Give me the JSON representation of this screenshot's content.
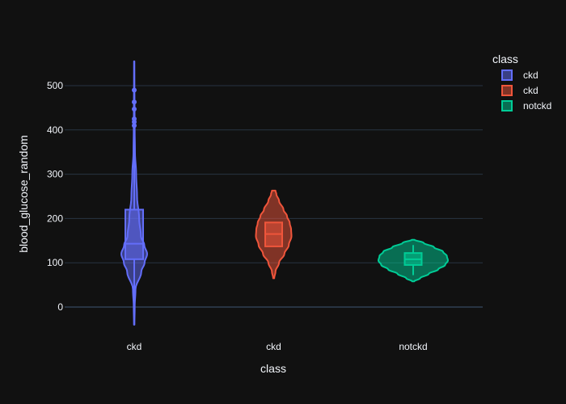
{
  "chart_data": {
    "type": "violin",
    "xlabel": "class",
    "ylabel": "blood_glucose_random",
    "categories": [
      "ckd",
      "ckd",
      "notckd"
    ],
    "ylim": [
      -40,
      555
    ],
    "y_ticks": [
      0,
      100,
      200,
      300,
      400,
      500
    ],
    "grid": true,
    "legend": {
      "title": "class",
      "placement": "top-right",
      "items": [
        "ckd",
        "ckd",
        "notckd"
      ]
    },
    "series": [
      {
        "name": "ckd",
        "category_index": 0,
        "color": "#636efa",
        "box": {
          "q1": 108,
          "median": 143,
          "q3": 220,
          "lower_whisker": -40,
          "upper_whisker": 353
        },
        "outliers": [
          410,
          418,
          425,
          447,
          463,
          490
        ],
        "violin_min": -40,
        "violin_max": 555,
        "density": [
          [
            -40,
            0.02
          ],
          [
            0,
            0.04
          ],
          [
            40,
            0.1
          ],
          [
            80,
            0.55
          ],
          [
            100,
            0.8
          ],
          [
            120,
            1.0
          ],
          [
            140,
            0.78
          ],
          [
            160,
            0.52
          ],
          [
            200,
            0.38
          ],
          [
            250,
            0.22
          ],
          [
            300,
            0.15
          ],
          [
            350,
            0.06
          ],
          [
            400,
            0.04
          ],
          [
            450,
            0.03
          ],
          [
            500,
            0.02
          ],
          [
            555,
            0.015
          ]
        ]
      },
      {
        "name": "ckd",
        "category_index": 1,
        "color": "#ef553b",
        "box": {
          "q1": 137,
          "median": 165,
          "q3": 191,
          "lower_whisker": 137,
          "upper_whisker": 191
        },
        "outliers": [],
        "violin_min": 65,
        "violin_max": 263,
        "density": [
          [
            65,
            0.03
          ],
          [
            80,
            0.1
          ],
          [
            100,
            0.3
          ],
          [
            120,
            0.6
          ],
          [
            140,
            0.85
          ],
          [
            160,
            1.0
          ],
          [
            175,
            0.98
          ],
          [
            190,
            0.9
          ],
          [
            205,
            0.75
          ],
          [
            220,
            0.55
          ],
          [
            240,
            0.3
          ],
          [
            255,
            0.15
          ],
          [
            263,
            0.1
          ]
        ]
      },
      {
        "name": "notckd",
        "category_index": 2,
        "color": "#00cc96",
        "box": {
          "q1": 95,
          "median": 108,
          "q3": 122,
          "lower_whisker": 72,
          "upper_whisker": 140
        },
        "outliers": [],
        "violin_min": 58,
        "violin_max": 152,
        "density": [
          [
            58,
            0.03
          ],
          [
            65,
            0.2
          ],
          [
            75,
            0.45
          ],
          [
            85,
            0.72
          ],
          [
            95,
            0.92
          ],
          [
            105,
            1.0
          ],
          [
            115,
            0.97
          ],
          [
            125,
            0.86
          ],
          [
            135,
            0.6
          ],
          [
            145,
            0.3
          ],
          [
            152,
            0.04
          ]
        ]
      }
    ]
  }
}
